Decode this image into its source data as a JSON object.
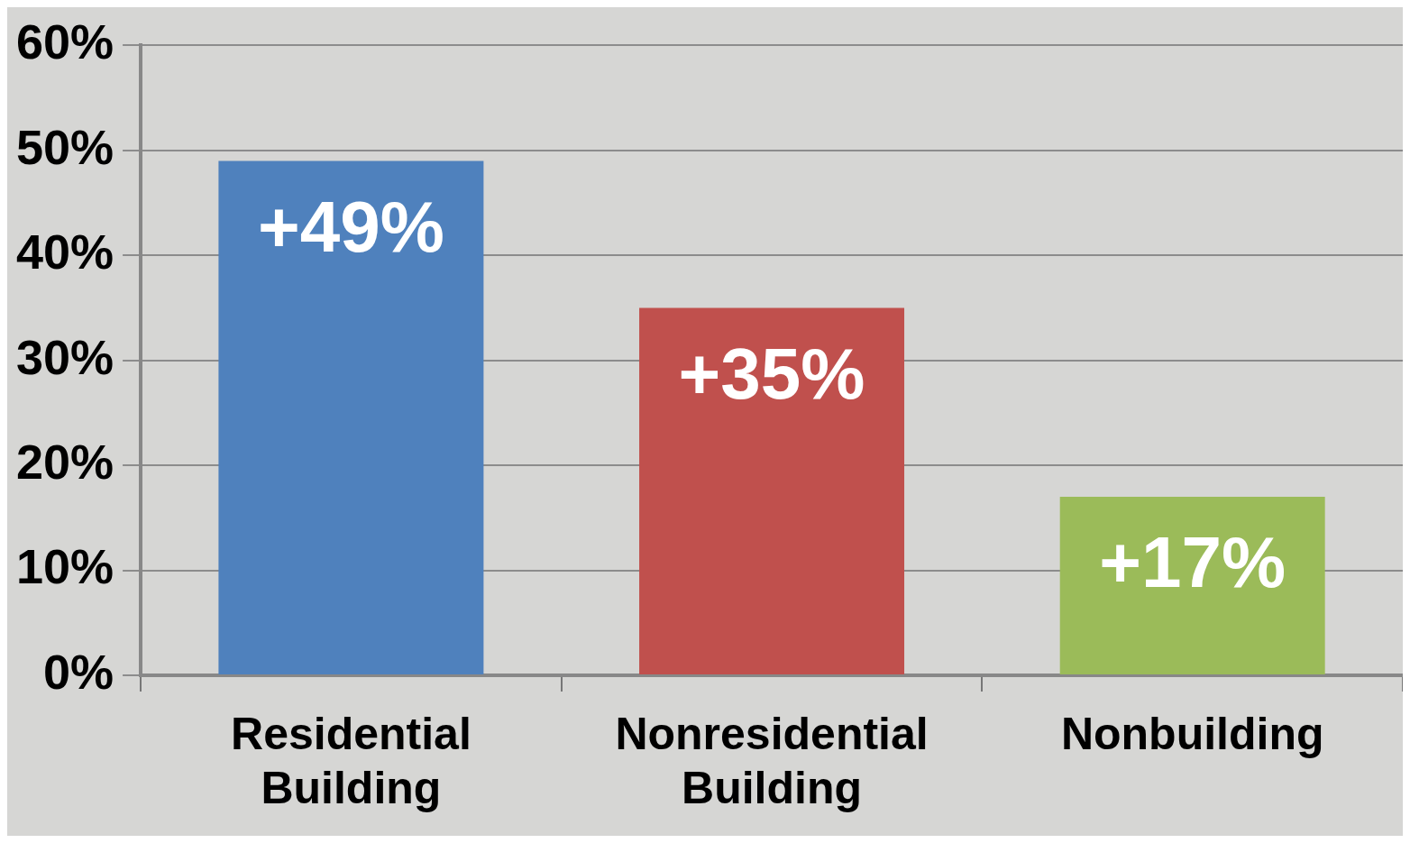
{
  "chart_data": {
    "type": "bar",
    "categories": [
      "Residential Building",
      "Nonresidential Building",
      "Nonbuilding"
    ],
    "values": [
      49,
      35,
      17
    ],
    "colors": [
      "#4f81bd",
      "#c0504d",
      "#9bbb59"
    ],
    "value_labels": [
      "+49%",
      "+35%",
      "+17%"
    ],
    "ylim": [
      0,
      60
    ],
    "yticks": [
      {
        "value": 0,
        "label": "0%"
      },
      {
        "value": 10,
        "label": "10%"
      },
      {
        "value": 20,
        "label": "20%"
      },
      {
        "value": 30,
        "label": "30%"
      },
      {
        "value": 40,
        "label": "40%"
      },
      {
        "value": 50,
        "label": "50%"
      },
      {
        "value": 60,
        "label": "60%"
      }
    ],
    "grid": "y",
    "legend": false
  }
}
